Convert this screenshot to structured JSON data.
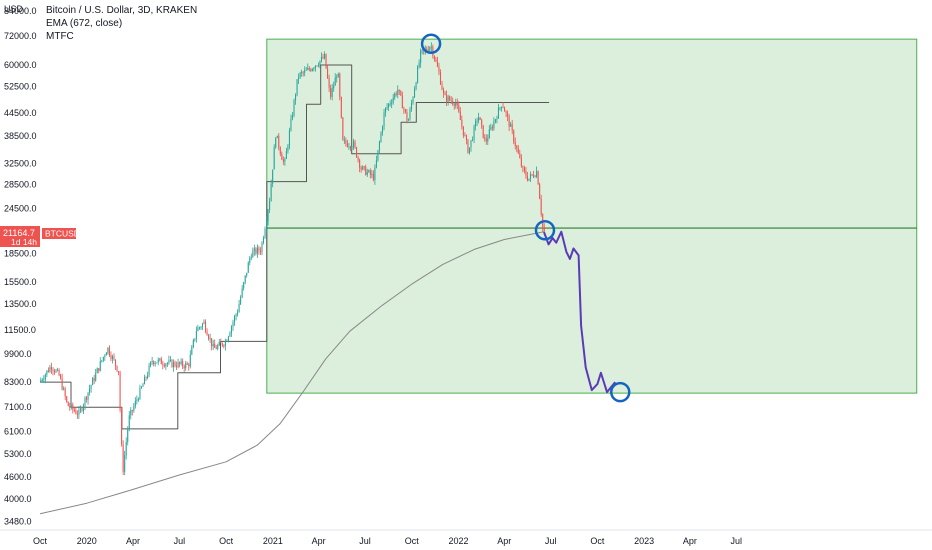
{
  "legend": {
    "title": "Bitcoin / U.S. Dollar, 3D, KRAKEN",
    "indicator1": "EMA (672, close)",
    "indicator2": "MTFC"
  },
  "price_scale": {
    "unit": "USD",
    "current_price": "21164.7",
    "countdown": "1d 14h",
    "symbol_tag": "BTCUSD"
  },
  "colors": {
    "up": "#26a69a",
    "down": "#ef5350",
    "box_fill": "#c8e6c9",
    "box_stroke": "#4caf50",
    "horizontal_line": "#2e7d32",
    "ema": "#888888",
    "mtfc": "#555555",
    "projection": "#5b3ab8",
    "circle": "#1565c0",
    "price_tag": "#ef5350"
  },
  "chart_data": {
    "type": "candlestick",
    "title": "Bitcoin / U.S. Dollar, 3D, KRAKEN",
    "y_scale": "log",
    "ylim": [
      3300,
      90000
    ],
    "x_range": [
      "2019-10-01",
      "2024-07-20"
    ],
    "y_ticks": [
      84000,
      72000,
      60000,
      52500,
      44500,
      38500,
      32500,
      28500,
      24500,
      18500,
      15500,
      13500,
      11500,
      9900,
      8300,
      7100,
      6100,
      5300,
      4600,
      4000,
      3480
    ],
    "y_tick_labels": [
      "84000.0",
      "72000.0",
      "60000.0",
      "52500.0",
      "44500.0",
      "38500.0",
      "32500.0",
      "28500.0",
      "24500.0",
      "18500.0",
      "15500.0",
      "13500.0",
      "11500.0",
      "9900.0",
      "8300.0",
      "7100.0",
      "6100.0",
      "5300.0",
      "4600.0",
      "4000.0",
      "3480.0"
    ],
    "x_ticks": [
      {
        "date": "2019-10-01",
        "label": "Oct"
      },
      {
        "date": "2020-01-01",
        "label": "2020"
      },
      {
        "date": "2020-04-01",
        "label": "Apr"
      },
      {
        "date": "2020-07-01",
        "label": "Jul"
      },
      {
        "date": "2020-10-01",
        "label": "Oct"
      },
      {
        "date": "2021-01-01",
        "label": "2021"
      },
      {
        "date": "2021-04-01",
        "label": "Apr"
      },
      {
        "date": "2021-07-01",
        "label": "Jul"
      },
      {
        "date": "2021-10-01",
        "label": "Oct"
      },
      {
        "date": "2022-01-01",
        "label": "2022"
      },
      {
        "date": "2022-04-01",
        "label": "Apr"
      },
      {
        "date": "2022-07-01",
        "label": "Jul"
      },
      {
        "date": "2022-10-01",
        "label": "Oct"
      },
      {
        "date": "2023-01-01",
        "label": "2023"
      },
      {
        "date": "2023-04-01",
        "label": "Apr"
      },
      {
        "date": "2023-07-01",
        "label": "Jul"
      }
    ],
    "price_path": [
      [
        "2019-10-01",
        8300
      ],
      [
        "2019-10-25",
        9200
      ],
      [
        "2019-11-10",
        8600
      ],
      [
        "2019-11-25",
        7200
      ],
      [
        "2019-12-18",
        6800
      ],
      [
        "2020-01-10",
        8100
      ],
      [
        "2020-02-12",
        10300
      ],
      [
        "2020-03-05",
        8900
      ],
      [
        "2020-03-13",
        4700
      ],
      [
        "2020-03-25",
        6600
      ],
      [
        "2020-04-30",
        8700
      ],
      [
        "2020-05-10",
        9500
      ],
      [
        "2020-06-20",
        9300
      ],
      [
        "2020-07-20",
        9200
      ],
      [
        "2020-08-05",
        11500
      ],
      [
        "2020-08-20",
        12000
      ],
      [
        "2020-09-08",
        10200
      ],
      [
        "2020-10-01",
        10700
      ],
      [
        "2020-10-25",
        13000
      ],
      [
        "2020-11-20",
        18500
      ],
      [
        "2020-12-10",
        19000
      ],
      [
        "2020-12-27",
        26000
      ],
      [
        "2021-01-08",
        39000
      ],
      [
        "2021-01-25",
        32000
      ],
      [
        "2021-02-21",
        56000
      ],
      [
        "2021-03-12",
        58000
      ],
      [
        "2021-04-14",
        63000
      ],
      [
        "2021-04-25",
        49000
      ],
      [
        "2021-05-10",
        58000
      ],
      [
        "2021-05-20",
        37000
      ],
      [
        "2021-06-10",
        36500
      ],
      [
        "2021-06-25",
        31500
      ],
      [
        "2021-07-20",
        29800
      ],
      [
        "2021-08-10",
        45000
      ],
      [
        "2021-09-05",
        51500
      ],
      [
        "2021-09-25",
        42000
      ],
      [
        "2021-10-20",
        64000
      ],
      [
        "2021-11-09",
        68000
      ],
      [
        "2021-11-25",
        57000
      ],
      [
        "2021-12-05",
        49000
      ],
      [
        "2021-12-28",
        47500
      ],
      [
        "2022-01-22",
        35000
      ],
      [
        "2022-02-10",
        44000
      ],
      [
        "2022-02-24",
        37000
      ],
      [
        "2022-03-29",
        47500
      ],
      [
        "2022-04-15",
        40500
      ],
      [
        "2022-05-09",
        31000
      ],
      [
        "2022-05-20",
        29500
      ],
      [
        "2022-06-06",
        31000
      ],
      [
        "2022-06-18",
        21164.7
      ]
    ],
    "series": [
      {
        "name": "EMA (672, close)",
        "points": [
          [
            "2019-10-01",
            3650
          ],
          [
            "2020-01-01",
            3900
          ],
          [
            "2020-04-01",
            4250
          ],
          [
            "2020-07-01",
            4650
          ],
          [
            "2020-10-01",
            5050
          ],
          [
            "2020-12-01",
            5600
          ],
          [
            "2021-01-15",
            6400
          ],
          [
            "2021-03-01",
            7800
          ],
          [
            "2021-04-15",
            9600
          ],
          [
            "2021-06-01",
            11400
          ],
          [
            "2021-08-01",
            13300
          ],
          [
            "2021-10-01",
            15300
          ],
          [
            "2021-12-01",
            17300
          ],
          [
            "2022-02-01",
            19000
          ],
          [
            "2022-04-01",
            20200
          ],
          [
            "2022-06-18",
            21200
          ]
        ]
      },
      {
        "name": "MTFC",
        "points": [
          [
            "2019-10-01",
            8300
          ],
          [
            "2019-12-01",
            8300
          ],
          [
            "2019-12-01",
            7100
          ],
          [
            "2020-03-10",
            7100
          ],
          [
            "2020-03-10",
            6200
          ],
          [
            "2020-06-28",
            6200
          ],
          [
            "2020-06-28",
            8800
          ],
          [
            "2020-09-20",
            8800
          ],
          [
            "2020-09-20",
            10700
          ],
          [
            "2020-12-20",
            10700
          ],
          [
            "2020-12-20",
            29000
          ],
          [
            "2021-03-08",
            29000
          ],
          [
            "2021-03-08",
            47000
          ],
          [
            "2021-04-05",
            47000
          ],
          [
            "2021-04-05",
            60000
          ],
          [
            "2021-06-05",
            60000
          ],
          [
            "2021-06-05",
            34500
          ],
          [
            "2021-09-10",
            34500
          ],
          [
            "2021-09-10",
            42000
          ],
          [
            "2021-10-10",
            42000
          ],
          [
            "2021-10-10",
            47500
          ],
          [
            "2022-06-28",
            47500
          ]
        ]
      },
      {
        "name": "projection",
        "points": [
          [
            "2022-06-18",
            21164.7
          ],
          [
            "2022-06-27",
            19600
          ],
          [
            "2022-07-05",
            20400
          ],
          [
            "2022-07-12",
            19800
          ],
          [
            "2022-07-22",
            21200
          ],
          [
            "2022-08-01",
            18700
          ],
          [
            "2022-08-08",
            17900
          ],
          [
            "2022-08-15",
            19100
          ],
          [
            "2022-08-25",
            18300
          ],
          [
            "2022-08-30",
            11800
          ],
          [
            "2022-09-08",
            9100
          ],
          [
            "2022-09-20",
            7900
          ],
          [
            "2022-10-01",
            8200
          ],
          [
            "2022-10-08",
            8800
          ],
          [
            "2022-10-20",
            7800
          ],
          [
            "2022-11-05",
            8300
          ]
        ]
      }
    ],
    "box": {
      "x": [
        "2020-12-20",
        "2024-06-20"
      ],
      "y": [
        7750,
        70500
      ]
    },
    "horizontal_line": 21700,
    "circles": [
      [
        "2021-11-08",
        68500
      ],
      [
        "2022-06-20",
        21400
      ],
      [
        "2022-11-15",
        7800
      ]
    ]
  }
}
